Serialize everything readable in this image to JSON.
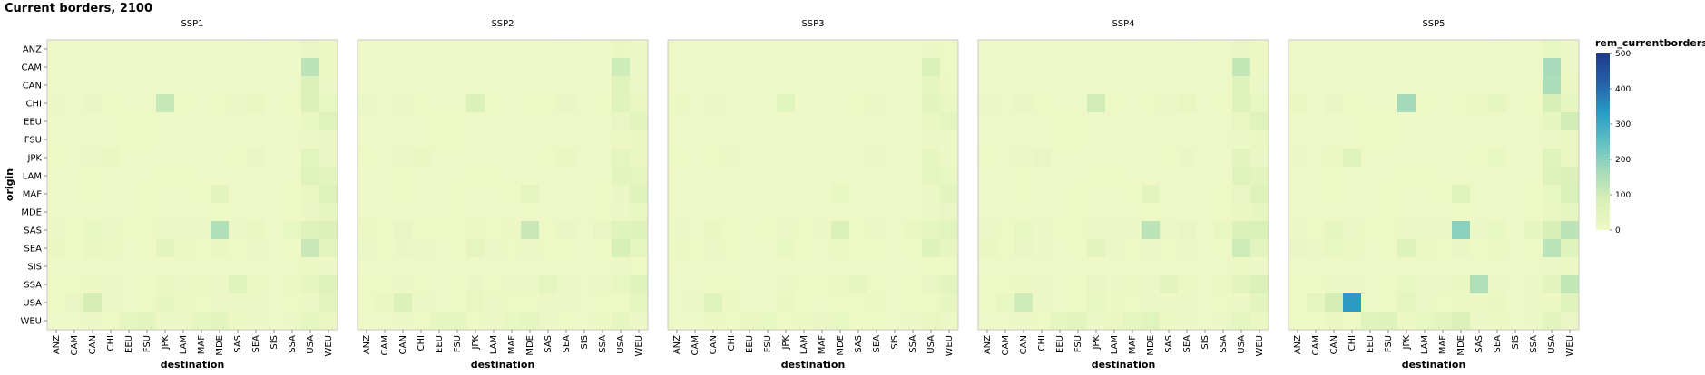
{
  "title": "Current borders, 2100",
  "chart_data": {
    "type": "heatmap",
    "title": "Current borders, 2100",
    "facets": [
      "SSP1",
      "SSP2",
      "SSP3",
      "SSP4",
      "SSP5"
    ],
    "origin_categories": [
      "ANZ",
      "CAM",
      "CAN",
      "CHI",
      "EEU",
      "FSU",
      "JPK",
      "LAM",
      "MAF",
      "MDE",
      "SAS",
      "SEA",
      "SIS",
      "SSA",
      "USA",
      "WEU"
    ],
    "destination_categories": [
      "ANZ",
      "CAM",
      "CAN",
      "CHI",
      "EEU",
      "FSU",
      "JPK",
      "LAM",
      "MAF",
      "MDE",
      "SAS",
      "SEA",
      "SIS",
      "SSA",
      "USA",
      "WEU"
    ],
    "xlabel": "destination",
    "ylabel": "origin",
    "legend": {
      "title": "rem_currentborders",
      "ticks": [
        0,
        100,
        200,
        300,
        400,
        500
      ],
      "range": [
        0,
        500
      ],
      "position": "right"
    },
    "color_scale": [
      "#eef8c6",
      "#d8f0b6",
      "#a6dbb9",
      "#5fbfc3",
      "#2a9bc4",
      "#2560a9",
      "#1e3b8a"
    ],
    "values": [
      [
        [
          0,
          1,
          1,
          1,
          0,
          0,
          1,
          1,
          0,
          0,
          1,
          2,
          0,
          1,
          18,
          8
        ],
        [
          0,
          0,
          0,
          1,
          0,
          0,
          1,
          1,
          0,
          0,
          0,
          1,
          0,
          1,
          130,
          8
        ],
        [
          0,
          0,
          0,
          1,
          0,
          0,
          2,
          1,
          0,
          0,
          1,
          2,
          0,
          1,
          68,
          12
        ],
        [
          12,
          2,
          16,
          3,
          1,
          2,
          115,
          4,
          2,
          3,
          6,
          20,
          0,
          3,
          70,
          24
        ],
        [
          1,
          0,
          2,
          1,
          3,
          3,
          1,
          1,
          2,
          2,
          1,
          1,
          0,
          1,
          22,
          52
        ],
        [
          0,
          0,
          1,
          1,
          3,
          3,
          1,
          0,
          1,
          1,
          1,
          1,
          0,
          1,
          10,
          16
        ],
        [
          5,
          1,
          7,
          20,
          1,
          1,
          2,
          2,
          1,
          1,
          3,
          18,
          0,
          1,
          45,
          16
        ],
        [
          1,
          1,
          4,
          2,
          1,
          1,
          3,
          3,
          1,
          1,
          2,
          2,
          0,
          2,
          52,
          40
        ],
        [
          0,
          0,
          4,
          2,
          2,
          3,
          2,
          2,
          3,
          42,
          2,
          2,
          0,
          3,
          20,
          65
        ],
        [
          0,
          0,
          1,
          1,
          2,
          3,
          1,
          1,
          2,
          4,
          1,
          1,
          0,
          3,
          16,
          30
        ],
        [
          10,
          4,
          24,
          6,
          3,
          4,
          10,
          6,
          10,
          150,
          6,
          20,
          2,
          24,
          60,
          70
        ],
        [
          15,
          5,
          20,
          8,
          2,
          4,
          42,
          8,
          3,
          14,
          4,
          6,
          0,
          4,
          110,
          42
        ],
        [
          0,
          0,
          1,
          1,
          0,
          0,
          1,
          1,
          0,
          0,
          0,
          2,
          0,
          1,
          8,
          6
        ],
        [
          4,
          3,
          8,
          6,
          2,
          3,
          20,
          6,
          8,
          12,
          48,
          8,
          0,
          8,
          30,
          60
        ],
        [
          3,
          18,
          90,
          12,
          2,
          3,
          25,
          8,
          3,
          6,
          7,
          12,
          1,
          5,
          6,
          42
        ],
        [
          2,
          2,
          12,
          4,
          32,
          38,
          6,
          12,
          28,
          40,
          8,
          6,
          1,
          10,
          32,
          14
        ]
      ],
      [
        [
          0,
          1,
          1,
          1,
          0,
          0,
          1,
          1,
          0,
          0,
          1,
          2,
          0,
          1,
          14,
          6
        ],
        [
          0,
          0,
          0,
          1,
          0,
          0,
          1,
          1,
          0,
          0,
          0,
          1,
          0,
          1,
          100,
          6
        ],
        [
          0,
          0,
          0,
          1,
          0,
          0,
          1,
          1,
          0,
          0,
          1,
          2,
          0,
          1,
          50,
          10
        ],
        [
          10,
          2,
          12,
          3,
          1,
          2,
          70,
          3,
          2,
          3,
          5,
          16,
          0,
          3,
          55,
          20
        ],
        [
          1,
          0,
          2,
          1,
          3,
          3,
          1,
          1,
          2,
          2,
          1,
          1,
          0,
          1,
          18,
          42
        ],
        [
          0,
          0,
          1,
          1,
          3,
          3,
          1,
          0,
          1,
          1,
          1,
          1,
          0,
          1,
          8,
          14
        ],
        [
          4,
          1,
          6,
          14,
          1,
          1,
          2,
          2,
          1,
          1,
          3,
          14,
          0,
          1,
          35,
          14
        ],
        [
          1,
          1,
          3,
          2,
          1,
          1,
          3,
          3,
          1,
          1,
          2,
          2,
          0,
          2,
          40,
          32
        ],
        [
          0,
          0,
          3,
          2,
          2,
          3,
          2,
          2,
          3,
          30,
          2,
          2,
          0,
          3,
          16,
          50
        ],
        [
          0,
          0,
          1,
          1,
          2,
          3,
          1,
          1,
          2,
          3,
          1,
          1,
          0,
          3,
          12,
          24
        ],
        [
          8,
          3,
          18,
          5,
          3,
          4,
          8,
          5,
          8,
          110,
          5,
          16,
          2,
          18,
          48,
          58
        ],
        [
          12,
          4,
          16,
          6,
          2,
          3,
          30,
          6,
          3,
          10,
          3,
          5,
          0,
          3,
          85,
          34
        ],
        [
          0,
          0,
          1,
          1,
          0,
          0,
          1,
          1,
          0,
          0,
          0,
          2,
          0,
          1,
          6,
          5
        ],
        [
          3,
          3,
          6,
          5,
          2,
          3,
          16,
          5,
          6,
          10,
          36,
          6,
          0,
          6,
          24,
          50
        ],
        [
          3,
          14,
          70,
          10,
          2,
          3,
          20,
          6,
          3,
          5,
          6,
          10,
          1,
          4,
          5,
          34
        ],
        [
          2,
          2,
          10,
          3,
          26,
          30,
          5,
          10,
          22,
          32,
          6,
          5,
          1,
          8,
          26,
          12
        ]
      ],
      [
        [
          0,
          0,
          1,
          1,
          0,
          0,
          1,
          0,
          0,
          0,
          1,
          1,
          0,
          1,
          10,
          4
        ],
        [
          0,
          0,
          0,
          0,
          0,
          0,
          1,
          1,
          0,
          0,
          0,
          1,
          0,
          1,
          75,
          4
        ],
        [
          0,
          0,
          0,
          1,
          0,
          0,
          1,
          1,
          0,
          0,
          1,
          1,
          0,
          1,
          35,
          8
        ],
        [
          8,
          1,
          10,
          2,
          1,
          1,
          45,
          2,
          2,
          2,
          4,
          12,
          0,
          2,
          40,
          15
        ],
        [
          1,
          0,
          1,
          1,
          2,
          2,
          1,
          1,
          1,
          1,
          1,
          1,
          0,
          1,
          14,
          34
        ],
        [
          0,
          0,
          1,
          1,
          2,
          2,
          1,
          0,
          1,
          1,
          1,
          1,
          0,
          1,
          6,
          10
        ],
        [
          3,
          1,
          5,
          10,
          1,
          1,
          2,
          2,
          1,
          1,
          2,
          10,
          0,
          1,
          26,
          10
        ],
        [
          1,
          1,
          2,
          2,
          1,
          1,
          2,
          2,
          1,
          1,
          2,
          2,
          0,
          2,
          30,
          24
        ],
        [
          0,
          0,
          2,
          2,
          2,
          2,
          2,
          2,
          2,
          22,
          2,
          2,
          0,
          2,
          12,
          38
        ],
        [
          0,
          0,
          1,
          1,
          2,
          2,
          1,
          1,
          2,
          2,
          1,
          1,
          0,
          2,
          10,
          18
        ],
        [
          6,
          2,
          14,
          4,
          2,
          3,
          6,
          4,
          6,
          75,
          4,
          12,
          1,
          14,
          36,
          45
        ],
        [
          9,
          3,
          12,
          5,
          2,
          2,
          22,
          5,
          2,
          8,
          3,
          4,
          0,
          3,
          60,
          26
        ],
        [
          0,
          0,
          1,
          1,
          0,
          0,
          1,
          1,
          0,
          0,
          0,
          1,
          0,
          1,
          5,
          4
        ],
        [
          2,
          2,
          5,
          4,
          1,
          2,
          12,
          4,
          5,
          8,
          26,
          5,
          0,
          5,
          18,
          38
        ],
        [
          2,
          10,
          48,
          8,
          1,
          2,
          15,
          5,
          2,
          4,
          5,
          8,
          1,
          3,
          4,
          26
        ],
        [
          2,
          2,
          8,
          3,
          20,
          22,
          4,
          8,
          16,
          24,
          5,
          4,
          1,
          6,
          20,
          10
        ]
      ],
      [
        [
          0,
          1,
          1,
          1,
          0,
          0,
          1,
          1,
          0,
          0,
          1,
          2,
          0,
          1,
          16,
          8
        ],
        [
          0,
          0,
          0,
          1,
          0,
          0,
          1,
          1,
          0,
          0,
          0,
          1,
          0,
          1,
          120,
          8
        ],
        [
          0,
          0,
          0,
          1,
          0,
          0,
          2,
          1,
          0,
          0,
          1,
          2,
          0,
          1,
          60,
          12
        ],
        [
          12,
          2,
          16,
          3,
          1,
          2,
          95,
          4,
          2,
          3,
          6,
          20,
          0,
          3,
          62,
          22
        ],
        [
          1,
          0,
          2,
          1,
          3,
          3,
          1,
          1,
          2,
          2,
          1,
          1,
          0,
          1,
          20,
          48
        ],
        [
          0,
          0,
          1,
          1,
          3,
          3,
          1,
          0,
          1,
          1,
          1,
          1,
          0,
          1,
          10,
          14
        ],
        [
          5,
          1,
          7,
          18,
          1,
          1,
          2,
          2,
          1,
          1,
          3,
          16,
          0,
          1,
          42,
          16
        ],
        [
          1,
          1,
          4,
          2,
          1,
          1,
          3,
          3,
          1,
          1,
          2,
          2,
          0,
          2,
          48,
          38
        ],
        [
          0,
          0,
          4,
          2,
          2,
          3,
          2,
          2,
          3,
          38,
          2,
          2,
          0,
          3,
          18,
          60
        ],
        [
          0,
          0,
          1,
          1,
          2,
          3,
          1,
          1,
          2,
          4,
          1,
          1,
          0,
          3,
          14,
          28
        ],
        [
          10,
          4,
          22,
          6,
          3,
          4,
          10,
          6,
          10,
          130,
          6,
          18,
          2,
          22,
          75,
          80
        ],
        [
          14,
          5,
          18,
          7,
          2,
          4,
          38,
          7,
          3,
          12,
          4,
          6,
          0,
          4,
          100,
          40
        ],
        [
          0,
          0,
          1,
          1,
          0,
          0,
          1,
          1,
          0,
          0,
          0,
          2,
          0,
          1,
          8,
          6
        ],
        [
          4,
          3,
          8,
          6,
          2,
          3,
          18,
          6,
          8,
          12,
          42,
          8,
          0,
          8,
          40,
          70
        ],
        [
          3,
          22,
          100,
          12,
          2,
          3,
          24,
          8,
          3,
          6,
          7,
          12,
          1,
          5,
          6,
          40
        ],
        [
          2,
          2,
          12,
          4,
          36,
          42,
          6,
          14,
          30,
          44,
          8,
          6,
          1,
          10,
          34,
          14
        ]
      ],
      [
        [
          0,
          1,
          1,
          1,
          0,
          0,
          1,
          1,
          0,
          0,
          1,
          2,
          0,
          1,
          22,
          10
        ],
        [
          0,
          0,
          0,
          1,
          0,
          0,
          1,
          1,
          0,
          0,
          0,
          1,
          0,
          1,
          165,
          10
        ],
        [
          0,
          0,
          0,
          1,
          0,
          0,
          2,
          1,
          0,
          0,
          1,
          2,
          0,
          1,
          160,
          14
        ],
        [
          14,
          2,
          18,
          3,
          1,
          2,
          170,
          4,
          2,
          3,
          8,
          28,
          0,
          3,
          85,
          28
        ],
        [
          1,
          0,
          2,
          1,
          3,
          3,
          1,
          1,
          2,
          2,
          1,
          1,
          0,
          1,
          26,
          95
        ],
        [
          0,
          0,
          1,
          1,
          3,
          3,
          1,
          0,
          1,
          1,
          1,
          1,
          0,
          1,
          12,
          20
        ],
        [
          6,
          1,
          8,
          55,
          1,
          1,
          2,
          2,
          1,
          1,
          4,
          22,
          0,
          1,
          52,
          20
        ],
        [
          1,
          1,
          5,
          2,
          1,
          1,
          4,
          4,
          1,
          1,
          2,
          2,
          0,
          2,
          60,
          70
        ],
        [
          0,
          0,
          5,
          2,
          2,
          3,
          2,
          2,
          3,
          55,
          2,
          2,
          0,
          3,
          24,
          80
        ],
        [
          0,
          0,
          1,
          1,
          2,
          3,
          1,
          1,
          2,
          4,
          1,
          1,
          0,
          3,
          20,
          36
        ],
        [
          12,
          5,
          28,
          7,
          3,
          4,
          12,
          7,
          12,
          200,
          7,
          24,
          2,
          28,
          85,
          130
        ],
        [
          18,
          6,
          24,
          9,
          2,
          5,
          60,
          9,
          4,
          16,
          5,
          8,
          0,
          5,
          130,
          50
        ],
        [
          0,
          0,
          1,
          1,
          0,
          0,
          1,
          1,
          0,
          0,
          0,
          2,
          0,
          1,
          10,
          8
        ],
        [
          5,
          4,
          10,
          7,
          2,
          4,
          24,
          7,
          10,
          14,
          150,
          10,
          0,
          10,
          40,
          120
        ],
        [
          4,
          30,
          90,
          330,
          2,
          4,
          30,
          10,
          4,
          8,
          9,
          14,
          1,
          6,
          8,
          50
        ],
        [
          3,
          3,
          14,
          5,
          52,
          58,
          8,
          22,
          40,
          70,
          10,
          8,
          1,
          12,
          40,
          18
        ]
      ]
    ]
  }
}
